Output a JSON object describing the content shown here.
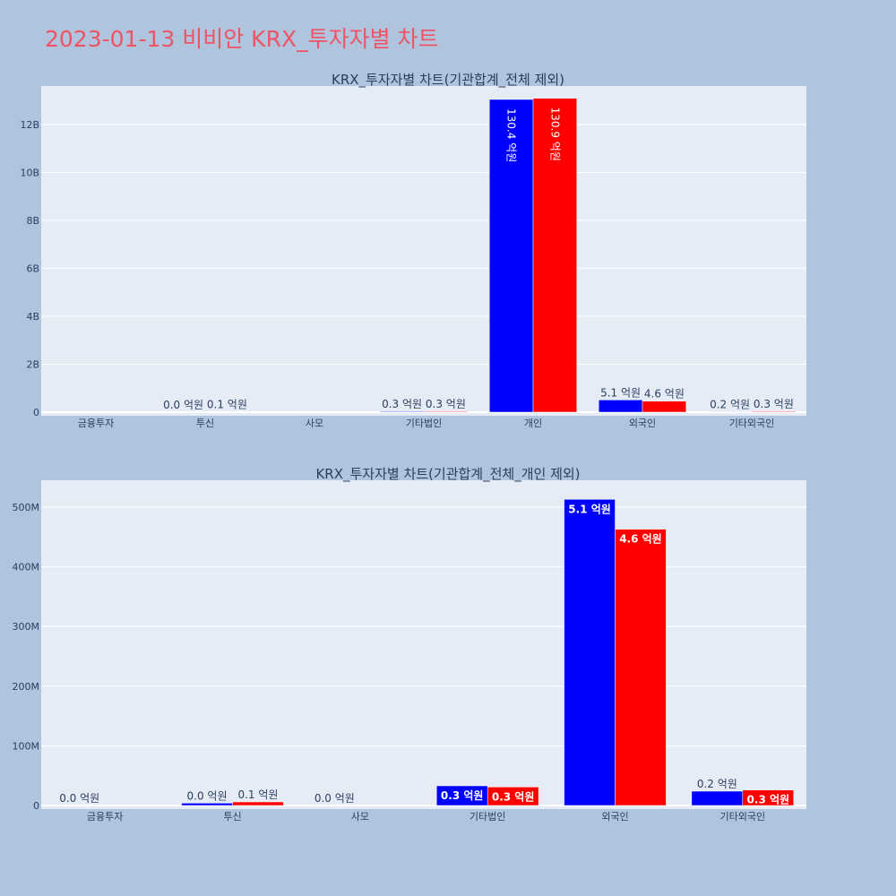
{
  "page_title": "2023-01-13 비비안 KRX_투자자별 차트",
  "colors": {
    "series_a": "#0000ff",
    "series_b": "#ff0000",
    "plot_bg": "#e5ecf6",
    "page_bg": "#b0c4de",
    "title": "#ef5366"
  },
  "chart_data": [
    {
      "type": "bar",
      "title": "KRX_투자자별 차트(기관합계_전체 제외)",
      "categories": [
        "금융투자",
        "투신",
        "사모",
        "기타법인",
        "개인",
        "외국인",
        "기타외국인"
      ],
      "ylim": [
        0,
        13600000000.0
      ],
      "yticks": [
        0,
        2000000000.0,
        4000000000.0,
        6000000000.0,
        8000000000.0,
        10000000000.0,
        12000000000.0
      ],
      "ytick_labels": [
        "0",
        "2B",
        "4B",
        "6B",
        "8B",
        "10B",
        "12B"
      ],
      "series": [
        {
          "values": [
            0,
            0,
            0,
            30000000,
            13040000000,
            510000000,
            20000000
          ],
          "labels": [
            "",
            "0.0 억원",
            "",
            "0.3 억원",
            "130.4 억원",
            "5.1 억원",
            "0.2 억원"
          ]
        },
        {
          "values": [
            0,
            10000000,
            0,
            30000000,
            13090000000,
            460000000,
            30000000
          ],
          "labels": [
            "",
            "0.1 억원",
            "",
            "0.3 억원",
            "130.9 억원",
            "4.6 억원",
            "0.3 억원"
          ]
        }
      ]
    },
    {
      "type": "bar",
      "title": "KRX_투자자별 차트(기관합계_전체_개인 제외)",
      "categories": [
        "금융투자",
        "투신",
        "사모",
        "기타법인",
        "외국인",
        "기타외국인"
      ],
      "ylim": [
        0,
        545000000
      ],
      "yticks": [
        0,
        100000000,
        200000000,
        300000000,
        400000000,
        500000000
      ],
      "ytick_labels": [
        "0",
        "100M",
        "200M",
        "300M",
        "400M",
        "500M"
      ],
      "series": [
        {
          "values": [
            0,
            4000000,
            0,
            33000000,
            513000000,
            24000000
          ],
          "labels": [
            "0.0 억원",
            "0.0 억원",
            "0.0 억원",
            "0.3 억원",
            "5.1 억원",
            "0.2 억원"
          ]
        },
        {
          "values": [
            0,
            6000000,
            0,
            31000000,
            463000000,
            26000000
          ],
          "labels": [
            "",
            "0.1 억원",
            "",
            "0.3 억원",
            "4.6 억원",
            "0.3 억원"
          ]
        }
      ]
    }
  ]
}
